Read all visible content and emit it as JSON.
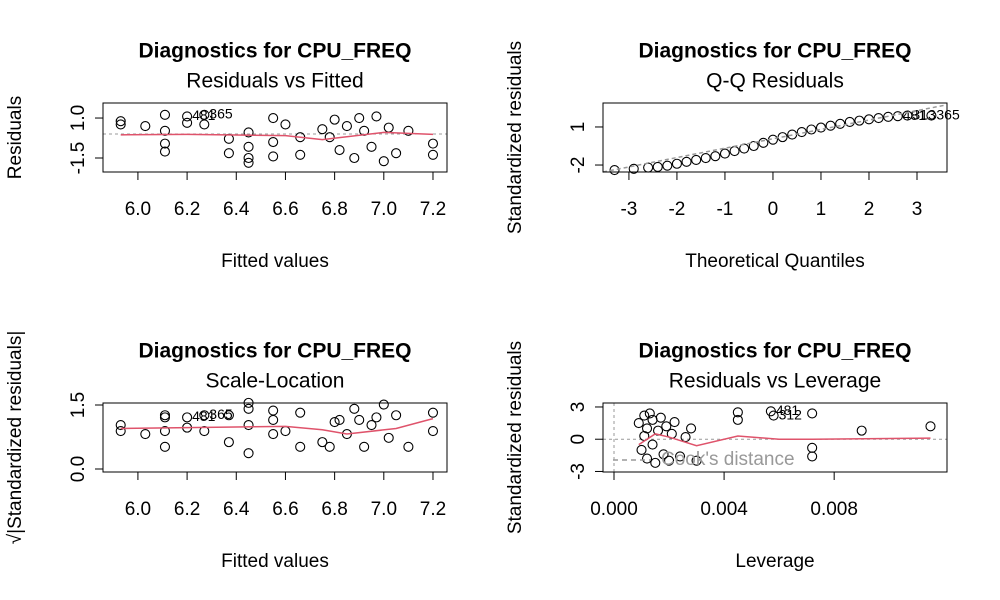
{
  "chart_data": [
    {
      "type": "scatter",
      "title": "Diagnostics for CPU_FREQ",
      "subtitle": "Residuals vs Fitted",
      "xlabel": "Fitted values",
      "ylabel": "Residuals",
      "xlim": [
        5.858,
        7.257
      ],
      "ylim": [
        -2.375,
        1.94
      ],
      "xticks": [
        {
          "value": 6,
          "label": "6.0"
        },
        6.2,
        6.4,
        6.6,
        6.8,
        {
          "value": 7,
          "label": "7.0"
        },
        7.2
      ],
      "yticks": [
        {
          "value": 1,
          "label": "1.0"
        },
        -1.5
      ],
      "points": {
        "x": [
          5.93,
          5.93,
          6.03,
          6.11,
          6.11,
          6.11,
          6.11,
          6.2,
          6.2,
          6.27,
          6.27,
          6.37,
          6.37,
          6.45,
          6.45,
          6.45,
          6.45,
          6.55,
          6.55,
          6.55,
          6.6,
          6.66,
          6.66,
          6.75,
          6.78,
          6.8,
          6.82,
          6.85,
          6.88,
          6.9,
          6.92,
          6.95,
          6.97,
          7.0,
          7.02,
          7.05,
          7.1,
          7.2,
          7.2
        ],
        "y": [
          0.6,
          0.8,
          0.5,
          1.2,
          0.2,
          -0.6,
          -1.1,
          1.1,
          0.7,
          1.2,
          0.6,
          -0.3,
          -1.2,
          0.1,
          -0.8,
          -1.5,
          -1.8,
          1.0,
          -0.5,
          -1.4,
          0.6,
          -0.2,
          -1.3,
          0.3,
          -0.2,
          0.9,
          -1.0,
          0.5,
          -1.5,
          1.0,
          0.2,
          -0.8,
          1.1,
          -1.7,
          0.4,
          -1.2,
          0.2,
          -0.6,
          -1.3
        ],
        "labels": [
          null,
          null,
          null,
          null,
          null,
          null,
          null,
          "481",
          null,
          "365",
          null,
          null,
          null,
          null,
          null,
          null,
          null,
          null,
          null,
          null,
          null,
          null,
          null,
          null,
          null,
          null,
          null,
          null,
          null,
          null,
          null,
          null,
          null,
          null,
          null,
          null,
          null,
          null,
          null
        ]
      },
      "smooth": {
        "color": "#DF536B",
        "x": [
          5.93,
          6.2,
          6.6,
          6.75,
          7.0,
          7.2
        ],
        "y": [
          -0.05,
          -0.02,
          -0.1,
          -0.35,
          0.1,
          -0.02
        ]
      },
      "reference": {
        "y": 0,
        "color": "#999999"
      }
    },
    {
      "type": "scatter",
      "title": "Diagnostics for CPU_FREQ",
      "subtitle": "Q-Q Residuals",
      "xlabel": "Theoretical Quantiles",
      "ylabel": "Standardized residuals",
      "xlim": [
        -3.54,
        3.625
      ],
      "ylim": [
        -2.55,
        2.89
      ],
      "xticks": [
        -3,
        -2,
        -1,
        0,
        1,
        2,
        3
      ],
      "yticks": [
        1,
        -2
      ],
      "points": {
        "x": [
          -3.3,
          -2.9,
          -2.6,
          -2.4,
          -2.2,
          -2.0,
          -1.8,
          -1.6,
          -1.4,
          -1.2,
          -1.0,
          -0.8,
          -0.6,
          -0.4,
          -0.2,
          0,
          0.2,
          0.4,
          0.6,
          0.8,
          1.0,
          1.2,
          1.4,
          1.6,
          1.8,
          2.0,
          2.2,
          2.4,
          2.6,
          2.8,
          3.3
        ],
        "y": [
          -2.4,
          -2.3,
          -2.2,
          -2.15,
          -2.05,
          -1.9,
          -1.75,
          -1.6,
          -1.45,
          -1.3,
          -1.1,
          -0.9,
          -0.7,
          -0.5,
          -0.25,
          0,
          0.2,
          0.4,
          0.6,
          0.8,
          0.95,
          1.1,
          1.25,
          1.4,
          1.5,
          1.6,
          1.7,
          1.8,
          1.85,
          1.9,
          1.9
        ],
        "labels": [
          null,
          null,
          null,
          null,
          null,
          null,
          null,
          null,
          null,
          null,
          null,
          null,
          null,
          null,
          null,
          null,
          null,
          null,
          null,
          null,
          null,
          null,
          null,
          null,
          null,
          null,
          null,
          null,
          "481",
          "313",
          "365"
        ]
      },
      "smooth": {
        "color": "#999999",
        "dash": true,
        "x": [
          -3.54,
          3.625
        ],
        "y": [
          -2.55,
          2.75
        ]
      }
    },
    {
      "type": "scatter",
      "title": "Diagnostics for CPU_FREQ",
      "subtitle": "Scale-Location",
      "xlabel": "Fitted values",
      "ylabel": "√|Standardized residuals|",
      "xlim": [
        5.858,
        7.257
      ],
      "ylim": [
        -0.07,
        1.547
      ],
      "xticks": [
        {
          "value": 6,
          "label": "6.0"
        },
        6.2,
        6.4,
        6.6,
        6.8,
        {
          "value": 7,
          "label": "7.0"
        },
        7.2
      ],
      "yticks": [
        {
          "value": 1.5,
          "label": "1.5"
        },
        {
          "value": 0,
          "label": "0.0"
        }
      ],
      "points": {
        "x": [
          5.93,
          5.93,
          6.03,
          6.11,
          6.11,
          6.11,
          6.11,
          6.2,
          6.2,
          6.27,
          6.27,
          6.37,
          6.37,
          6.45,
          6.45,
          6.45,
          6.45,
          6.55,
          6.55,
          6.55,
          6.6,
          6.66,
          6.66,
          6.75,
          6.78,
          6.8,
          6.82,
          6.85,
          6.88,
          6.9,
          6.92,
          6.95,
          6.97,
          7.0,
          7.02,
          7.05,
          7.1,
          7.2,
          7.2
        ],
        "y": [
          0.89,
          1.03,
          0.82,
          1.26,
          0.52,
          0.89,
          1.21,
          1.21,
          0.97,
          1.26,
          0.89,
          0.63,
          1.26,
          0.37,
          1.03,
          1.41,
          1.55,
          1.15,
          0.82,
          1.37,
          0.89,
          0.52,
          1.32,
          0.63,
          0.52,
          1.1,
          1.15,
          0.82,
          1.41,
          1.15,
          0.52,
          1.03,
          1.21,
          1.51,
          0.73,
          1.26,
          0.52,
          0.89,
          1.32
        ],
        "labels": [
          null,
          null,
          null,
          null,
          null,
          null,
          null,
          "481",
          null,
          "365",
          null,
          null,
          null,
          null,
          null,
          null,
          null,
          null,
          null,
          null,
          null,
          null,
          null,
          null,
          null,
          null,
          null,
          null,
          null,
          null,
          null,
          null,
          null,
          null,
          null,
          null,
          null,
          null,
          null
        ]
      },
      "smooth": {
        "color": "#DF536B",
        "x": [
          5.93,
          6.2,
          6.6,
          6.75,
          6.85,
          7.05,
          7.2
        ],
        "y": [
          0.95,
          0.97,
          1.0,
          0.92,
          0.82,
          0.95,
          1.18
        ]
      }
    },
    {
      "type": "scatter",
      "title": "Diagnostics for CPU_FREQ",
      "subtitle": "Residuals vs Leverage",
      "xlabel": "Leverage",
      "ylabel": "Standardized residuals",
      "xlim": [
        -0.0004,
        0.0121
      ],
      "ylim": [
        -3.05,
        3.37
      ],
      "xticks": [
        {
          "value": 0,
          "label": "0.000"
        },
        {
          "value": 0.004,
          "label": "0.004"
        },
        {
          "value": 0.008,
          "label": "0.008"
        }
      ],
      "yticks": [
        3,
        0,
        -3
      ],
      "points": {
        "x": [
          0.0009,
          0.001,
          0.0011,
          0.0011,
          0.0012,
          0.0012,
          0.0013,
          0.0014,
          0.0014,
          0.0015,
          0.0016,
          0.0017,
          0.0018,
          0.0019,
          0.002,
          0.0021,
          0.0022,
          0.0024,
          0.0026,
          0.0028,
          0.003,
          0.0045,
          0.0045,
          0.0057,
          0.0058,
          0.0072,
          0.0072,
          0.0072,
          0.009,
          0.0115
        ],
        "y": [
          1.5,
          -1.0,
          2.2,
          0.3,
          -1.8,
          1.0,
          2.4,
          -0.5,
          1.8,
          -2.2,
          0.8,
          2.0,
          -1.4,
          1.2,
          -2.0,
          0.5,
          1.6,
          -1.6,
          0.2,
          1.0,
          -2.0,
          2.5,
          1.8,
          2.6,
          2.2,
          2.4,
          -0.8,
          -1.6,
          0.8,
          1.2
        ],
        "labels": [
          null,
          null,
          null,
          null,
          null,
          null,
          null,
          null,
          null,
          null,
          null,
          null,
          null,
          null,
          null,
          null,
          null,
          null,
          null,
          null,
          null,
          null,
          null,
          "481",
          "312",
          null,
          null,
          null,
          null,
          null
        ]
      },
      "smooth": {
        "color": "#DF536B",
        "x": [
          0.0009,
          0.0015,
          0.002,
          0.003,
          0.0045,
          0.006,
          0.0072,
          0.0115
        ],
        "y": [
          -0.5,
          0.5,
          0.2,
          -0.6,
          0.3,
          0,
          0,
          0.1
        ]
      },
      "reference": {
        "x": 0,
        "y": 0,
        "color": "#999999"
      },
      "legend": {
        "label": "Cook's distance",
        "color": "#999999",
        "position": "bottom-left"
      }
    }
  ]
}
